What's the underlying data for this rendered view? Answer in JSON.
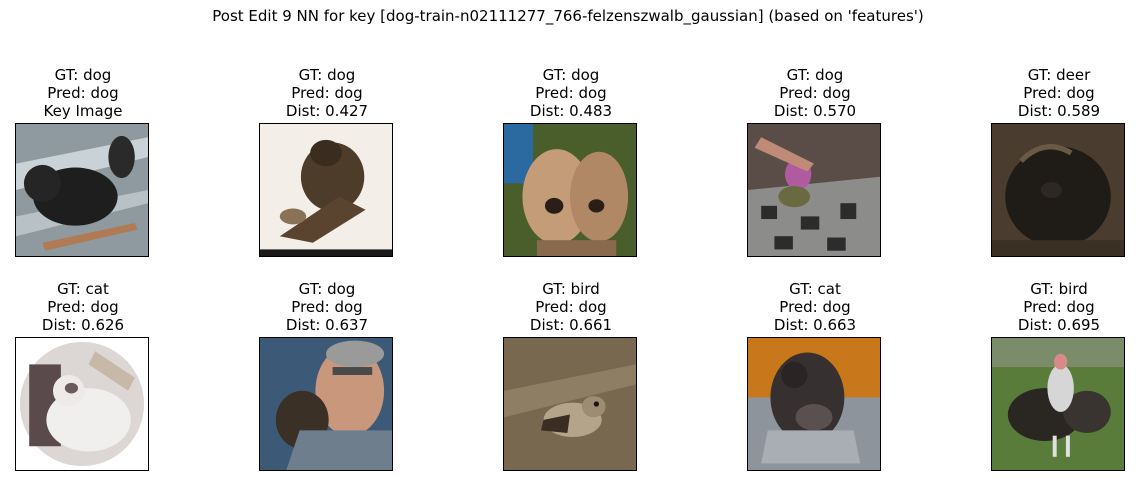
{
  "figure": {
    "title": "Post Edit 9 NN for key [dog-train-n02111277_766-felzenszwalb_gaussian] (based on 'features')"
  },
  "panels": [
    {
      "gt": "GT: dog",
      "pred": "Pred: dog",
      "extra": "Key Image",
      "subject": "black dog lying on grey tiled floor",
      "palette": {
        "bg": "#9aa7ad",
        "fg": "#1c1c1c",
        "accent": "#b07a55"
      }
    },
    {
      "gt": "GT: dog",
      "pred": "Pred: dog",
      "extra": "Dist: 0.427",
      "subject": "brown dog on white background",
      "palette": {
        "bg": "#f4efe9",
        "fg": "#4a3a28",
        "accent": "#1a1a1a"
      }
    },
    {
      "gt": "GT: dog",
      "pred": "Pred: dog",
      "extra": "Dist: 0.483",
      "subject": "two fluffy tan puppies",
      "palette": {
        "bg": "#3f5a2a",
        "fg": "#c9a27e",
        "accent": "#2a6aa0"
      }
    },
    {
      "gt": "GT: dog",
      "pred": "Pred: dog",
      "extra": "Dist: 0.570",
      "subject": "small dog on patterned rug",
      "palette": {
        "bg": "#5a4a44",
        "fg": "#9a9a98",
        "accent": "#b05aa0"
      }
    },
    {
      "gt": "GT: deer",
      "pred": "Pred: dog",
      "extra": "Dist: 0.589",
      "subject": "dark furry animal",
      "palette": {
        "bg": "#4a3c2c",
        "fg": "#1e1a16",
        "accent": "#6a5a44"
      }
    },
    {
      "gt": "GT: cat",
      "pred": "Pred: dog",
      "extra": "Dist: 0.626",
      "subject": "white cat in round frame",
      "palette": {
        "bg": "#ffffff",
        "fg": "#e6e2e2",
        "accent": "#5a4a4c"
      }
    },
    {
      "gt": "GT: dog",
      "pred": "Pred: dog",
      "extra": "Dist: 0.637",
      "subject": "man holding small dog",
      "palette": {
        "bg": "#3a5a78",
        "fg": "#c89a80",
        "accent": "#6a7a88"
      }
    },
    {
      "gt": "GT: bird",
      "pred": "Pred: dog",
      "extra": "Dist: 0.661",
      "subject": "small bird on ground",
      "palette": {
        "bg": "#7a6a50",
        "fg": "#b4a48a",
        "accent": "#3a2e24"
      }
    },
    {
      "gt": "GT: cat",
      "pred": "Pred: dog",
      "extra": "Dist: 0.663",
      "subject": "cat in sink with orange background",
      "palette": {
        "bg": "#c87a1a",
        "fg": "#3c3636",
        "accent": "#9aa0a8"
      }
    },
    {
      "gt": "GT: bird",
      "pred": "Pred: dog",
      "extra": "Dist: 0.695",
      "subject": "large bird on green grass",
      "palette": {
        "bg": "#5a7a3a",
        "fg": "#2a2622",
        "accent": "#d8d8d8"
      }
    }
  ]
}
